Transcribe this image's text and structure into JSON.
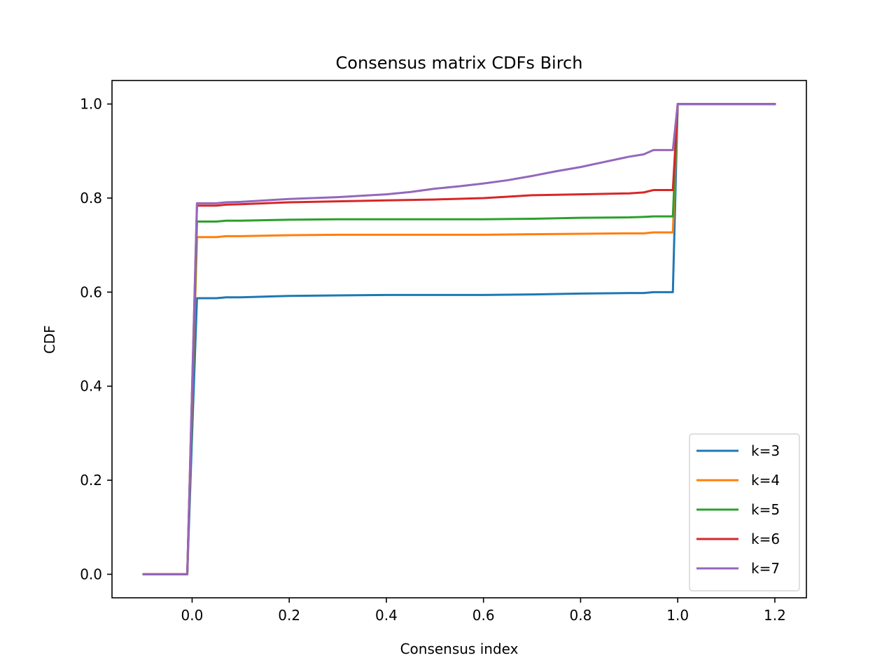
{
  "chart_data": {
    "type": "line",
    "title": "Consensus matrix CDFs Birch",
    "xlabel": "Consensus index",
    "ylabel": "CDF",
    "xlim": [
      -0.165,
      1.265
    ],
    "ylim": [
      -0.05,
      1.05
    ],
    "xticks": [
      0.0,
      0.2,
      0.4,
      0.6,
      0.8,
      1.0,
      1.2
    ],
    "xtick_labels": [
      "0.0",
      "0.2",
      "0.4",
      "0.6",
      "0.8",
      "1.0",
      "1.2"
    ],
    "yticks": [
      0.0,
      0.2,
      0.4,
      0.6,
      0.8,
      1.0
    ],
    "ytick_labels": [
      "0.0",
      "0.2",
      "0.4",
      "0.6",
      "0.8",
      "1.0"
    ],
    "grid": false,
    "legend_position": "lower-right",
    "series": [
      {
        "name": "k=3",
        "color": "#1f77b4",
        "x": [
          -0.1,
          -0.01,
          0.0,
          0.01,
          0.05,
          0.07,
          0.1,
          0.2,
          0.3,
          0.4,
          0.5,
          0.6,
          0.7,
          0.8,
          0.9,
          0.93,
          0.95,
          0.99,
          1.0,
          1.2
        ],
        "y": [
          0.0,
          0.0,
          0.3,
          0.587,
          0.587,
          0.589,
          0.589,
          0.592,
          0.593,
          0.594,
          0.594,
          0.594,
          0.595,
          0.597,
          0.598,
          0.598,
          0.6,
          0.6,
          1.0,
          1.0
        ]
      },
      {
        "name": "k=4",
        "color": "#ff7f0e",
        "x": [
          -0.1,
          -0.01,
          0.0,
          0.01,
          0.05,
          0.07,
          0.1,
          0.2,
          0.3,
          0.4,
          0.5,
          0.6,
          0.7,
          0.8,
          0.9,
          0.93,
          0.95,
          0.99,
          1.0,
          1.2
        ],
        "y": [
          0.0,
          0.0,
          0.36,
          0.717,
          0.717,
          0.719,
          0.719,
          0.721,
          0.722,
          0.722,
          0.722,
          0.722,
          0.723,
          0.724,
          0.725,
          0.725,
          0.727,
          0.727,
          1.0,
          1.0
        ]
      },
      {
        "name": "k=5",
        "color": "#2ca02c",
        "x": [
          -0.1,
          -0.01,
          0.0,
          0.01,
          0.05,
          0.07,
          0.1,
          0.2,
          0.3,
          0.4,
          0.5,
          0.6,
          0.7,
          0.8,
          0.9,
          0.93,
          0.95,
          0.99,
          1.0,
          1.2
        ],
        "y": [
          0.0,
          0.0,
          0.37,
          0.75,
          0.75,
          0.752,
          0.752,
          0.754,
          0.755,
          0.755,
          0.755,
          0.755,
          0.756,
          0.758,
          0.759,
          0.76,
          0.761,
          0.761,
          1.0,
          1.0
        ]
      },
      {
        "name": "k=6",
        "color": "#d62728",
        "x": [
          -0.1,
          -0.01,
          0.0,
          0.01,
          0.05,
          0.07,
          0.1,
          0.2,
          0.3,
          0.4,
          0.5,
          0.6,
          0.65,
          0.7,
          0.8,
          0.9,
          0.93,
          0.95,
          0.99,
          1.0,
          1.2
        ],
        "y": [
          0.0,
          0.0,
          0.39,
          0.784,
          0.784,
          0.786,
          0.787,
          0.791,
          0.793,
          0.795,
          0.797,
          0.8,
          0.803,
          0.806,
          0.808,
          0.81,
          0.812,
          0.817,
          0.817,
          1.0,
          1.0
        ]
      },
      {
        "name": "k=7",
        "color": "#9467bd",
        "x": [
          -0.1,
          -0.01,
          0.0,
          0.01,
          0.05,
          0.07,
          0.1,
          0.2,
          0.3,
          0.4,
          0.45,
          0.5,
          0.55,
          0.6,
          0.65,
          0.7,
          0.75,
          0.8,
          0.85,
          0.9,
          0.93,
          0.95,
          0.99,
          1.0,
          1.2
        ],
        "y": [
          0.0,
          0.0,
          0.4,
          0.789,
          0.789,
          0.791,
          0.792,
          0.798,
          0.802,
          0.808,
          0.813,
          0.82,
          0.825,
          0.831,
          0.838,
          0.847,
          0.857,
          0.866,
          0.877,
          0.888,
          0.893,
          0.902,
          0.902,
          1.0,
          1.0
        ]
      }
    ]
  }
}
